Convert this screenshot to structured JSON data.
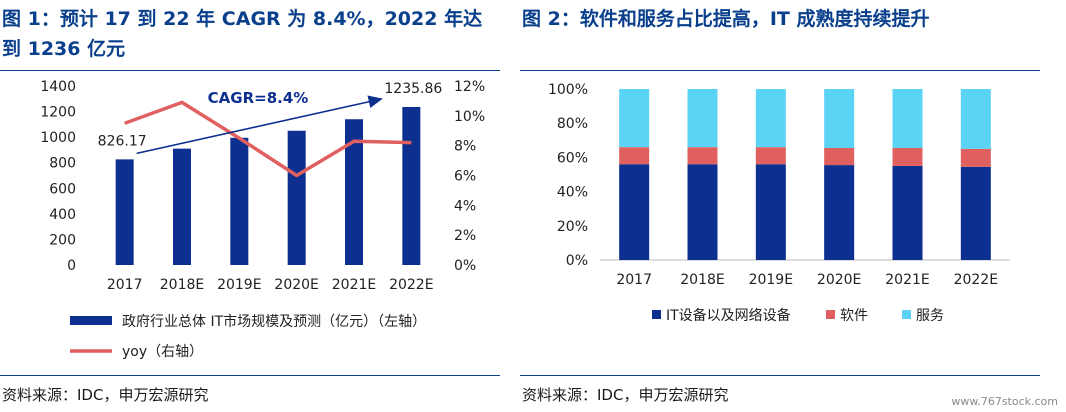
{
  "panels": {
    "left": {
      "title": "图 1：预计 17 到 22 年 CAGR 为 8.4%，2022 年达到 1236 亿元",
      "source": "资料来源：IDC，申万宏源研究"
    },
    "right": {
      "title": "图 2：软件和服务占比提高，IT 成熟度持续提升",
      "source": "资料来源：IDC，申万宏源研究"
    }
  },
  "watermark": "www.767stock.com",
  "chart_data": [
    {
      "type": "bar",
      "categories": [
        "2017",
        "2018E",
        "2019E",
        "2020E",
        "2021E",
        "2022E"
      ],
      "series": [
        {
          "name": "政府行业总体 IT市场规模及预测（亿元）（左轴）",
          "type": "bar",
          "axis": "left",
          "values": [
            826.17,
            910,
            995,
            1050,
            1140,
            1235.86
          ],
          "color": "#0d2f8f"
        },
        {
          "name": "yoy（右轴）",
          "type": "line",
          "axis": "right",
          "values": [
            9.5,
            10.9,
            8.5,
            6.0,
            8.3,
            8.2
          ],
          "color": "#e06060"
        }
      ],
      "ylim": [
        0,
        1400
      ],
      "yticks": [
        "0",
        "200",
        "400",
        "600",
        "800",
        "1000",
        "1200",
        "1400"
      ],
      "y2lim": [
        0,
        12
      ],
      "y2ticks": [
        "0%",
        "2%",
        "4%",
        "6%",
        "8%",
        "10%",
        "12%"
      ],
      "annotations": {
        "first_value_label": "826.17",
        "last_value_label": "1235.86",
        "cagr_label": "CAGR=8.4%"
      },
      "legend_position": "bottom"
    },
    {
      "type": "bar",
      "stacked": true,
      "categories": [
        "2017",
        "2018E",
        "2019E",
        "2020E",
        "2021E",
        "2022E"
      ],
      "series": [
        {
          "name": "IT设备以及网络设备",
          "values": [
            56,
            56,
            56,
            55.5,
            55,
            54.5
          ],
          "color": "#0d2f8f"
        },
        {
          "name": "软件",
          "values": [
            10,
            10,
            10,
            10,
            10.5,
            10.5
          ],
          "color": "#e06060"
        },
        {
          "name": "服务",
          "values": [
            34,
            34,
            34,
            34.5,
            34.5,
            35
          ],
          "color": "#5bd3f5"
        }
      ],
      "ylim": [
        0,
        100
      ],
      "yticks": [
        "0%",
        "20%",
        "40%",
        "60%",
        "80%",
        "100%"
      ],
      "legend_position": "bottom"
    }
  ]
}
